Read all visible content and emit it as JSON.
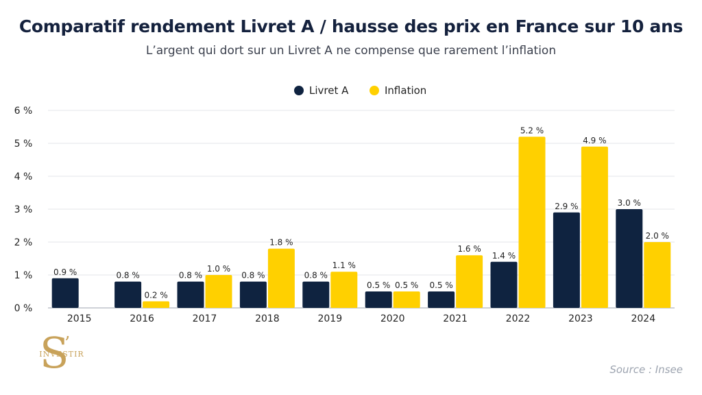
{
  "chart_data": {
    "type": "bar",
    "title": "Comparatif rendement Livret A / hausse des prix en France sur 10 ans",
    "subtitle": "L’argent qui dort sur un Livret A ne compense que rarement l’inflation",
    "categories": [
      "2015",
      "2016",
      "2017",
      "2018",
      "2019",
      "2020",
      "2021",
      "2022",
      "2023",
      "2024"
    ],
    "series": [
      {
        "name": "Livret A",
        "color": "#0f2340",
        "values": [
          0.9,
          0.8,
          0.8,
          0.8,
          0.8,
          0.5,
          0.5,
          1.4,
          2.9,
          3.0
        ],
        "labels": [
          "0.9 %",
          "0.8 %",
          "0.8 %",
          "0.8 %",
          "0.8 %",
          "0.5 %",
          "0.5 %",
          "1.4 %",
          "2.9 %",
          "3.0 %"
        ]
      },
      {
        "name": "Inflation",
        "color": "#ffd000",
        "values": [
          null,
          0.2,
          1.0,
          1.8,
          1.1,
          0.5,
          1.6,
          5.2,
          4.9,
          2.0
        ],
        "labels": [
          null,
          "0.2 %",
          "1.0 %",
          "1.8 %",
          "1.1 %",
          "0.5 %",
          "1.6 %",
          "5.2 %",
          "4.9 %",
          "2.0 %"
        ]
      }
    ],
    "ylim": [
      0,
      6
    ],
    "yticks": [
      0,
      1,
      2,
      3,
      4,
      5,
      6
    ],
    "ytick_labels": [
      "0 %",
      "1 %",
      "2 %",
      "3 %",
      "4 %",
      "5 %",
      "6 %"
    ],
    "xlabel": "",
    "ylabel": "",
    "grid": true,
    "legend_position": "top-center"
  },
  "logo": {
    "letter": "S",
    "apostrophe": "’",
    "text": "INVESTIR"
  },
  "source": "Source : Insee"
}
